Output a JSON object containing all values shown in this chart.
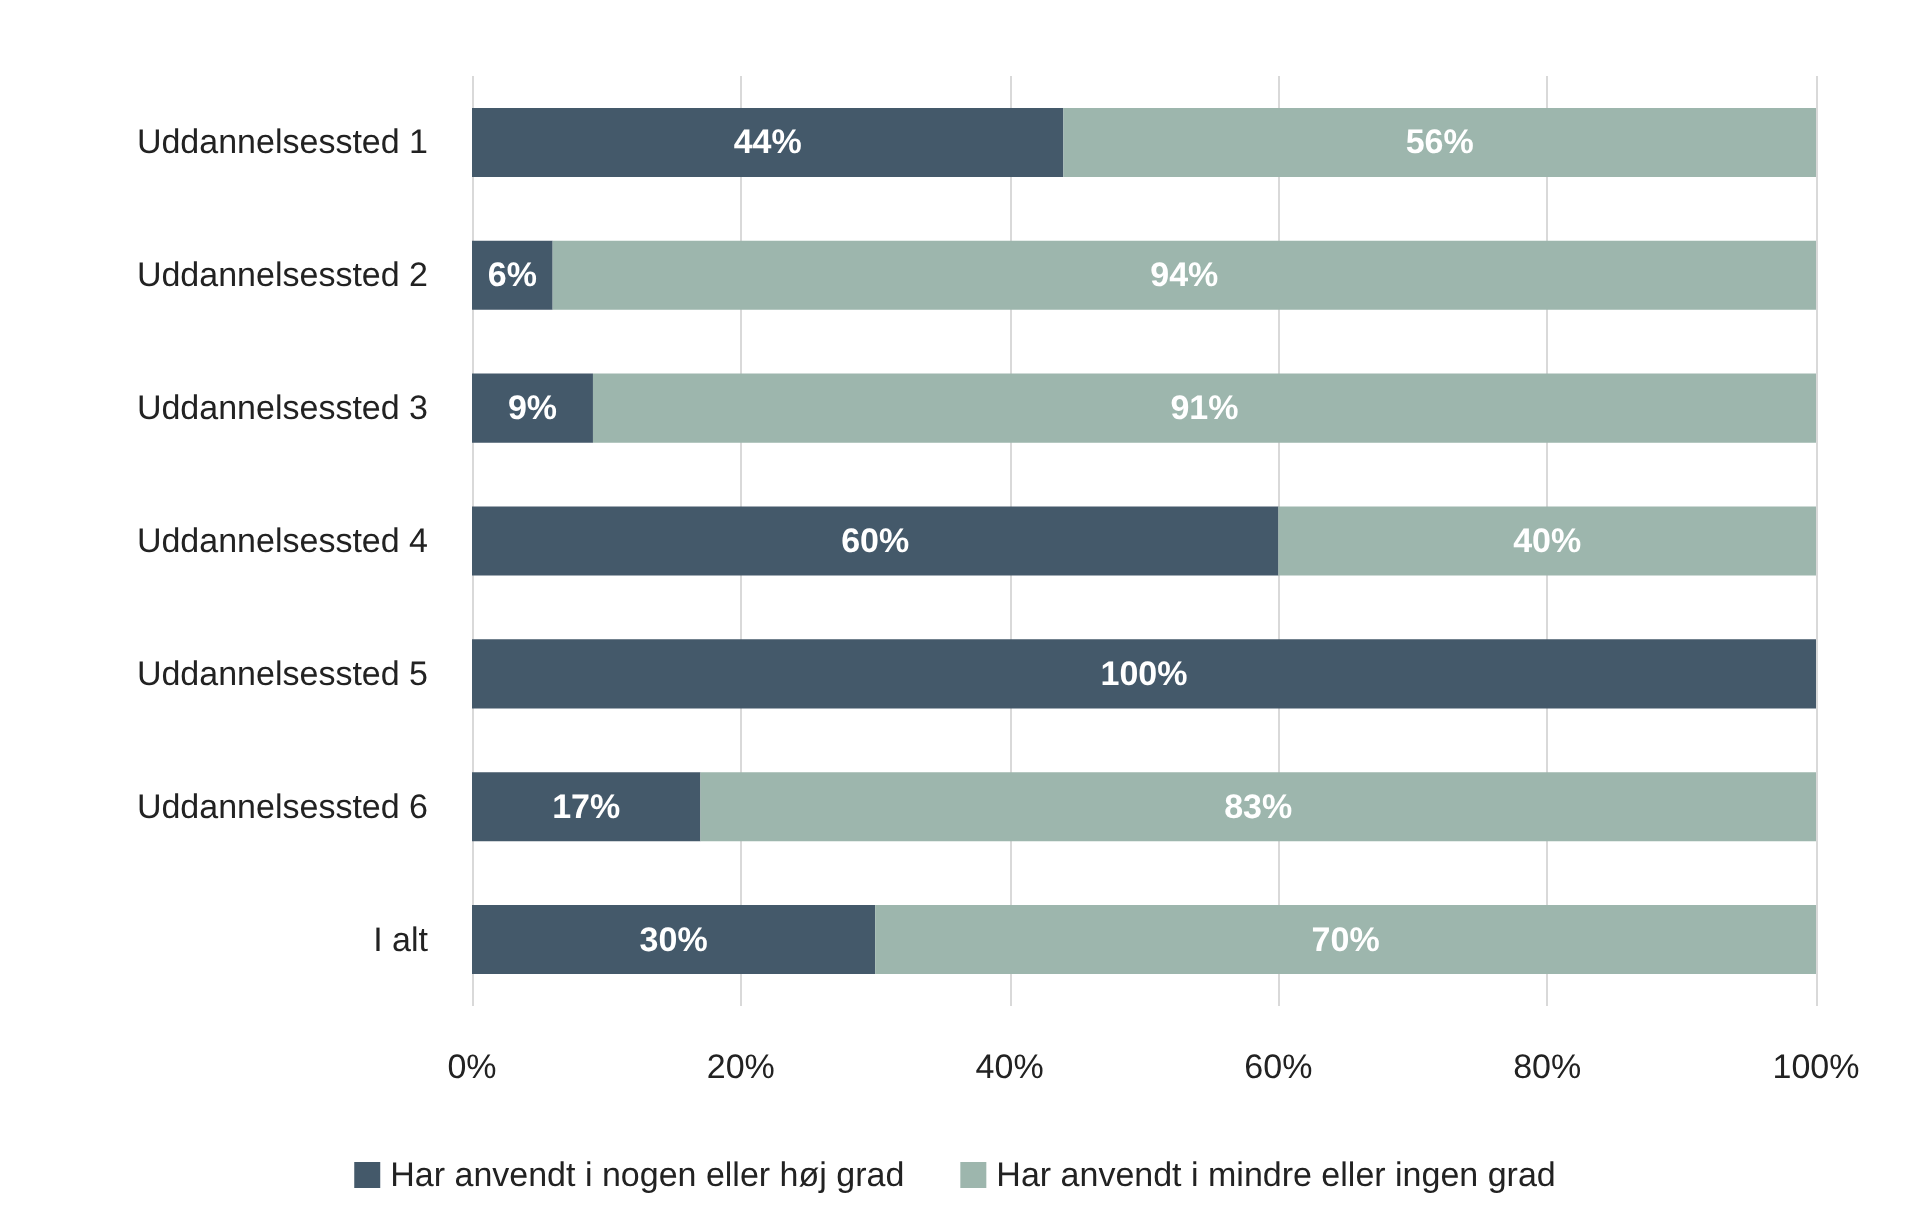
{
  "chart_data": {
    "type": "bar",
    "orientation": "horizontal",
    "stacked": true,
    "categories": [
      "Uddannelsessted 1",
      "Uddannelsessted 2",
      "Uddannelsessted 3",
      "Uddannelsessted 4",
      "Uddannelsessted 5",
      "Uddannelsessted 6",
      "I alt"
    ],
    "series": [
      {
        "name": "Har anvendt i nogen eller høj grad",
        "color": "#44596a",
        "values": [
          44,
          6,
          9,
          60,
          100,
          17,
          30
        ],
        "value_labels": [
          "44%",
          "6%",
          "9%",
          "60%",
          "100%",
          "17%",
          "30%"
        ]
      },
      {
        "name": "Har anvendt i mindre eller ingen grad",
        "color": "#9db6ad",
        "values": [
          56,
          94,
          91,
          40,
          0,
          83,
          70
        ],
        "value_labels": [
          "56%",
          "94%",
          "91%",
          "40%",
          null,
          "83%",
          "70%"
        ]
      }
    ],
    "xlim": [
      0,
      100
    ],
    "xticks": [
      {
        "value": 0,
        "label": "0%"
      },
      {
        "value": 20,
        "label": "20%"
      },
      {
        "value": 40,
        "label": "40%"
      },
      {
        "value": 60,
        "label": "60%"
      },
      {
        "value": 80,
        "label": "80%"
      },
      {
        "value": 100,
        "label": "100%"
      }
    ],
    "grid": "x",
    "legend": "bottom"
  }
}
